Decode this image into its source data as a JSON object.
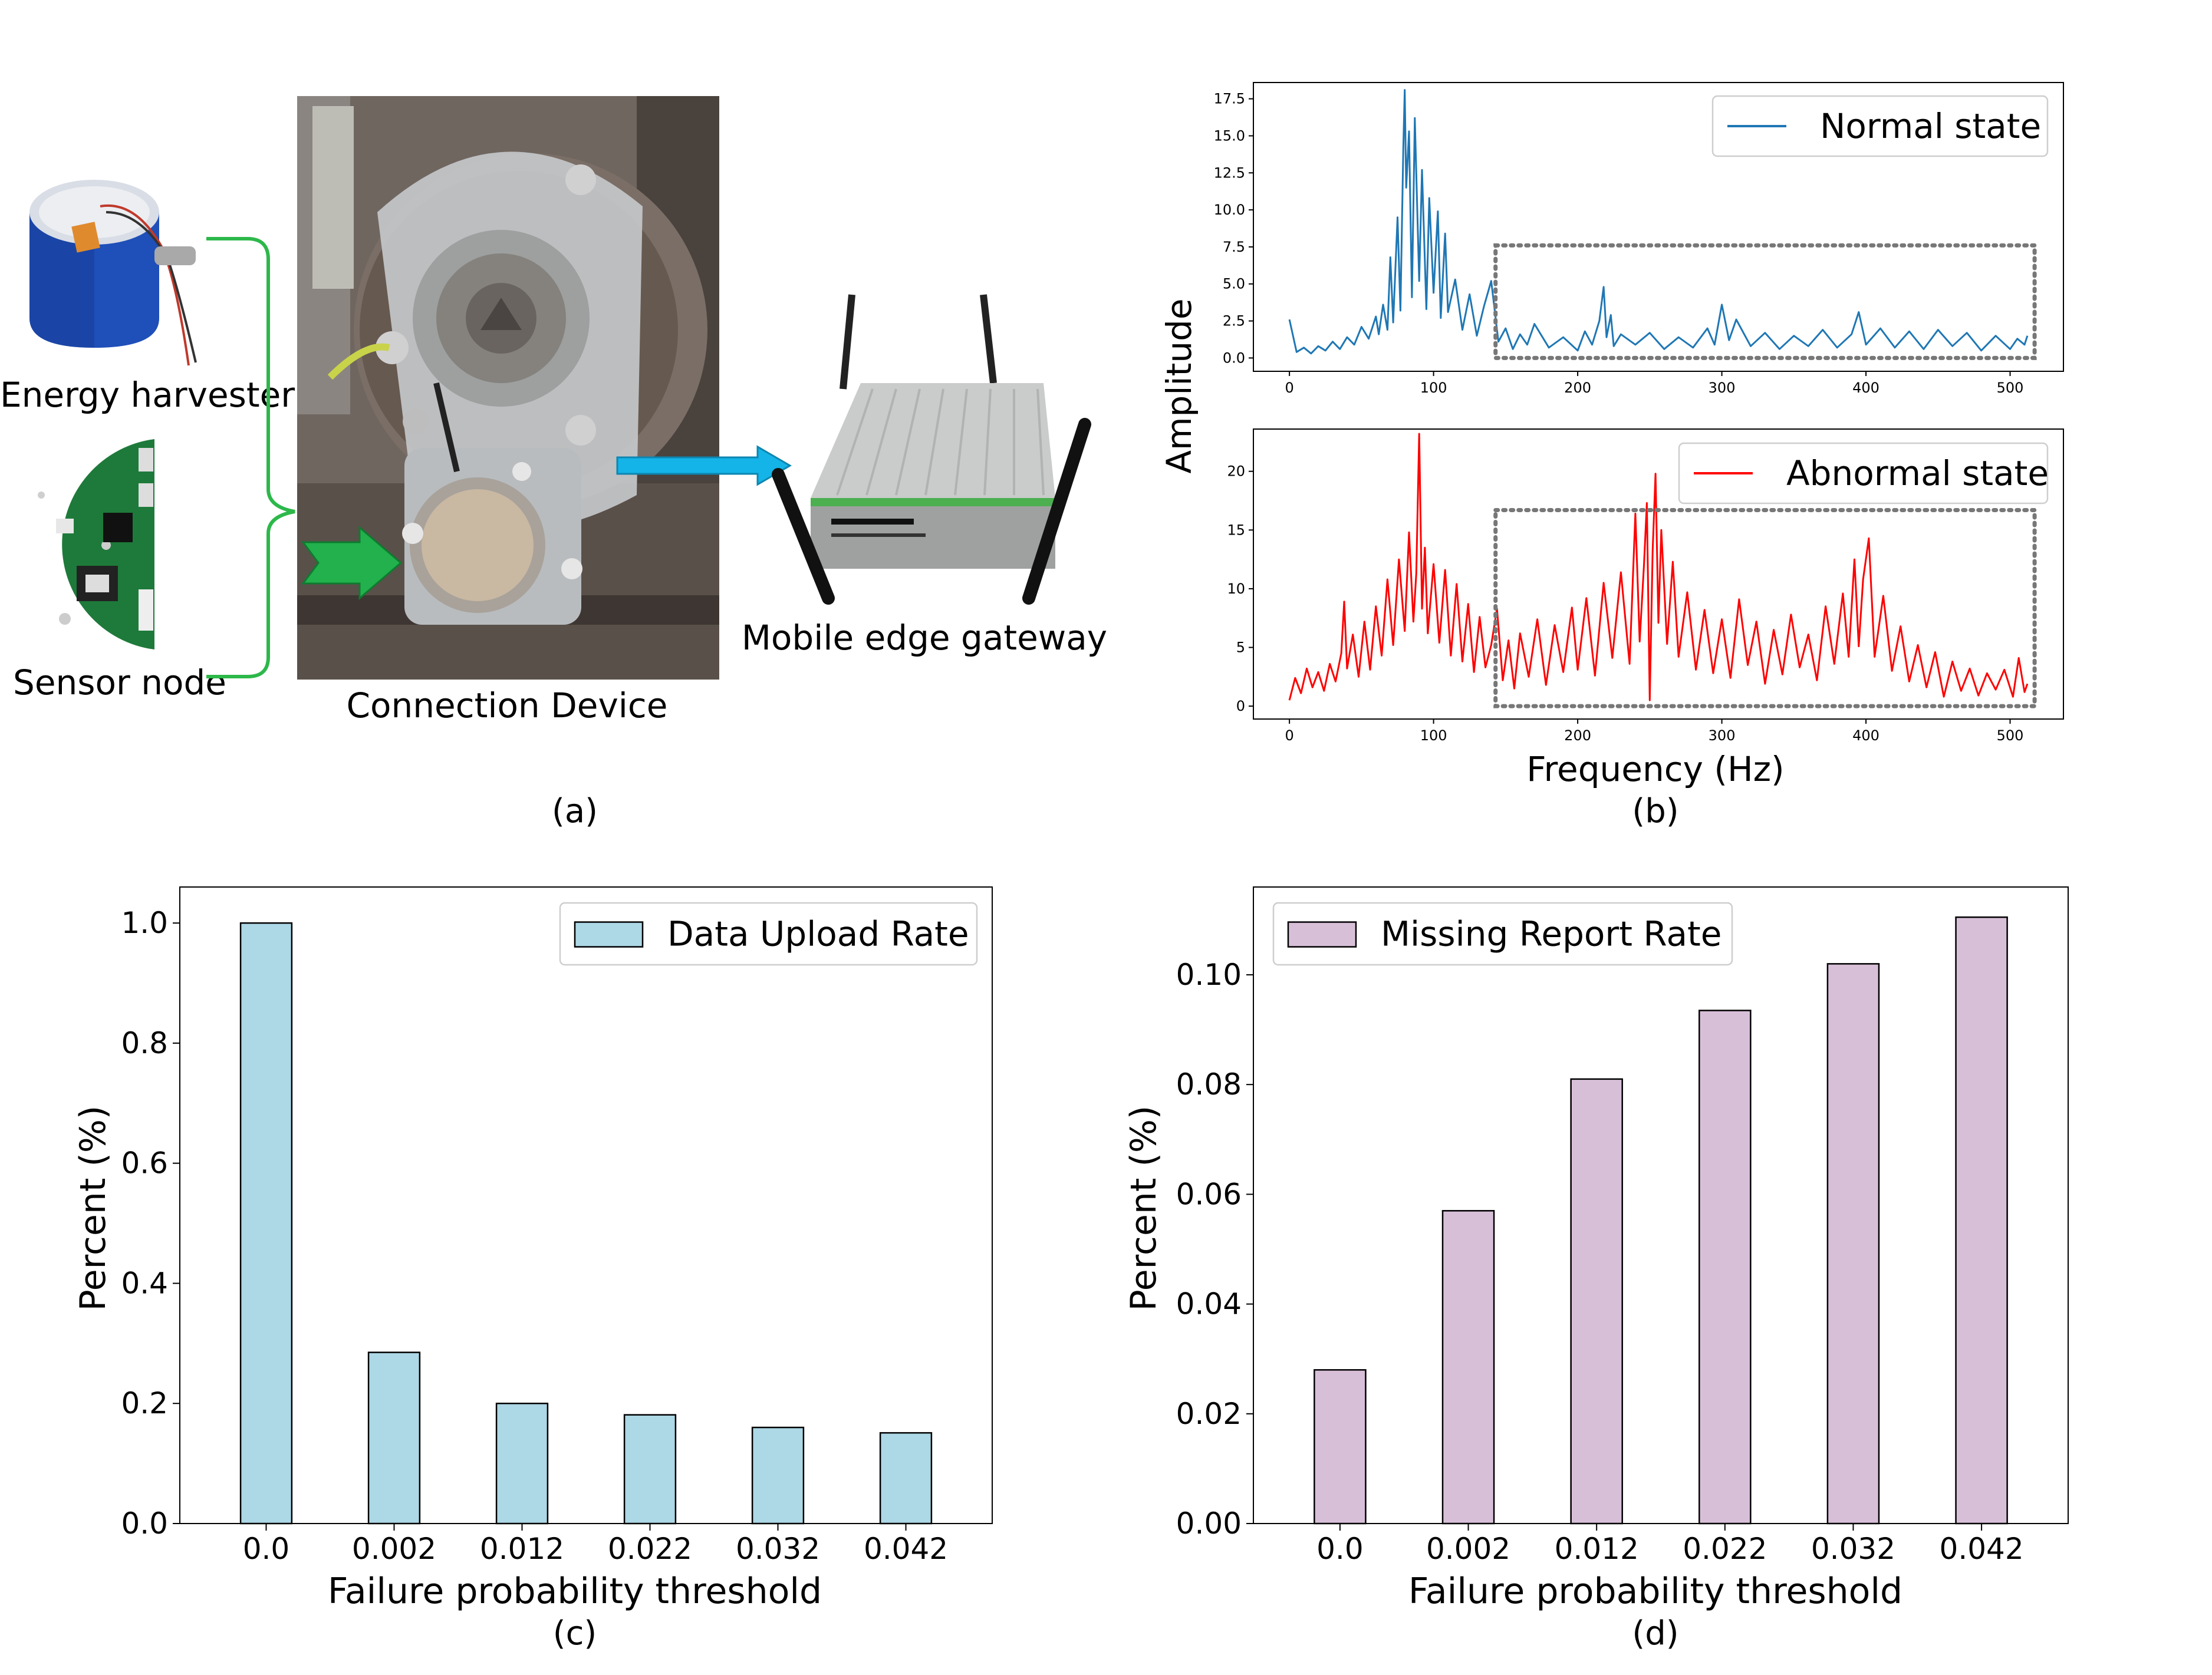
{
  "panel_a": {
    "caption": "(a)",
    "labels": {
      "energy_harvester": "Energy harvester",
      "sensor_node": "Sensor node",
      "connection_device": "Connection Device",
      "mobile_edge_gateway": "Mobile edge gateway"
    },
    "colors": {
      "bracket": "#2db84a",
      "green_arrow": "#22b14c",
      "blue_arrow": "#14b4e8",
      "battery": "#1f4fb8",
      "pcb": "#1e7a3a"
    }
  },
  "chart_data": [
    {
      "id": "b-normal",
      "type": "line",
      "caption": "(b)",
      "legend": "Normal state",
      "legend_position": "top-right",
      "color": "#1f77b4",
      "xlabel": "Frequency (Hz)",
      "ylabel": "Amplitude",
      "xlim": [
        -25,
        537
      ],
      "ylim": [
        -0.9,
        18.6
      ],
      "xticks": [
        0,
        100,
        200,
        300,
        400,
        500
      ],
      "yticks": [
        0.0,
        2.5,
        5.0,
        7.5,
        10.0,
        12.5,
        15.0,
        17.5
      ],
      "ytick_labels": [
        "0.0",
        "2.5",
        "5.0",
        "7.5",
        "10.0",
        "12.5",
        "15.0",
        "17.5"
      ],
      "highlight_box": {
        "x": [
          143,
          517
        ],
        "y": [
          0,
          7.6
        ]
      },
      "x": [
        0,
        5,
        10,
        15,
        20,
        25,
        30,
        35,
        40,
        45,
        50,
        55,
        60,
        62,
        65,
        68,
        70,
        72,
        75,
        77,
        79,
        80,
        81,
        83,
        85,
        87,
        90,
        92,
        95,
        97,
        100,
        103,
        105,
        108,
        110,
        115,
        120,
        125,
        130,
        135,
        140,
        145,
        150,
        155,
        160,
        165,
        170,
        180,
        190,
        200,
        205,
        210,
        215,
        218,
        220,
        223,
        225,
        230,
        240,
        250,
        260,
        270,
        280,
        290,
        295,
        300,
        305,
        310,
        320,
        330,
        340,
        350,
        360,
        370,
        380,
        390,
        395,
        400,
        410,
        420,
        430,
        440,
        450,
        460,
        470,
        480,
        490,
        500,
        505,
        510,
        512
      ],
      "y": [
        2.6,
        0.4,
        0.7,
        0.3,
        0.8,
        0.5,
        1.1,
        0.6,
        1.4,
        0.9,
        2.1,
        1.3,
        2.8,
        1.6,
        3.6,
        1.9,
        6.8,
        2.4,
        9.5,
        3.2,
        14.2,
        18.1,
        11.5,
        15.3,
        4.1,
        16.2,
        5.2,
        12.7,
        3.3,
        10.8,
        4.4,
        9.9,
        2.7,
        8.4,
        3.1,
        5.3,
        1.9,
        4.3,
        1.5,
        3.5,
        5.2,
        1.1,
        2.0,
        0.6,
        1.6,
        0.9,
        2.3,
        0.7,
        1.4,
        0.5,
        1.8,
        0.9,
        2.5,
        4.8,
        1.4,
        2.9,
        0.8,
        1.6,
        0.9,
        1.7,
        0.6,
        1.4,
        0.7,
        2.0,
        0.9,
        3.6,
        1.2,
        2.6,
        0.8,
        1.7,
        0.6,
        1.5,
        0.8,
        1.9,
        0.7,
        1.6,
        3.1,
        0.9,
        2.0,
        0.7,
        1.8,
        0.6,
        1.9,
        0.8,
        1.7,
        0.5,
        1.5,
        0.6,
        1.3,
        0.9,
        1.5
      ]
    },
    {
      "id": "b-abnormal",
      "type": "line",
      "legend": "Abnormal state",
      "legend_position": "top-right",
      "color": "#ff0000",
      "xlabel": "Frequency (Hz)",
      "ylabel": "Amplitude",
      "xlim": [
        -25,
        537
      ],
      "ylim": [
        -1.1,
        23.6
      ],
      "xticks": [
        0,
        100,
        200,
        300,
        400,
        500
      ],
      "yticks": [
        0,
        5,
        10,
        15,
        20
      ],
      "ytick_labels": [
        "0",
        "5",
        "10",
        "15",
        "20"
      ],
      "highlight_box": {
        "x": [
          143,
          517
        ],
        "y": [
          0,
          16.7
        ]
      },
      "x": [
        0,
        4,
        8,
        12,
        16,
        20,
        24,
        28,
        32,
        36,
        38,
        40,
        44,
        48,
        52,
        56,
        60,
        64,
        68,
        72,
        76,
        80,
        83,
        86,
        88,
        90,
        92,
        94,
        96,
        100,
        104,
        108,
        112,
        116,
        120,
        124,
        128,
        132,
        136,
        140,
        144,
        148,
        152,
        156,
        160,
        166,
        172,
        178,
        184,
        190,
        196,
        200,
        206,
        212,
        218,
        224,
        230,
        236,
        240,
        243,
        246,
        248,
        250,
        252,
        254,
        256,
        258,
        262,
        266,
        270,
        276,
        282,
        288,
        294,
        300,
        306,
        312,
        318,
        324,
        330,
        336,
        342,
        348,
        354,
        360,
        366,
        372,
        378,
        384,
        388,
        392,
        395,
        398,
        402,
        406,
        412,
        418,
        424,
        430,
        436,
        442,
        448,
        454,
        460,
        466,
        472,
        478,
        484,
        490,
        496,
        502,
        506,
        510,
        512
      ],
      "y": [
        0.5,
        2.4,
        1.1,
        3.2,
        1.6,
        2.9,
        1.3,
        3.6,
        2.1,
        4.5,
        8.9,
        3.2,
        6.1,
        2.5,
        7.2,
        3.1,
        8.5,
        4.3,
        10.8,
        5.2,
        12.5,
        6.4,
        14.8,
        7.2,
        11.3,
        23.2,
        8.3,
        13.5,
        6.2,
        12.1,
        5.4,
        11.6,
        4.3,
        10.4,
        3.8,
        8.7,
        2.9,
        7.6,
        3.3,
        5.2,
        8.3,
        2.2,
        5.6,
        1.5,
        6.2,
        2.5,
        7.4,
        1.8,
        6.9,
        2.9,
        8.4,
        3.1,
        9.2,
        2.6,
        10.5,
        4.1,
        11.4,
        3.6,
        16.4,
        5.5,
        12.1,
        17.3,
        0.5,
        13.2,
        19.8,
        7.1,
        15.0,
        5.3,
        12.3,
        4.2,
        9.7,
        3.1,
        8.2,
        2.8,
        7.4,
        2.4,
        9.1,
        3.5,
        7.2,
        1.9,
        6.5,
        2.7,
        7.8,
        3.3,
        6.1,
        2.2,
        8.5,
        3.6,
        9.6,
        4.2,
        12.5,
        5.1,
        10.8,
        14.3,
        4.2,
        9.4,
        3.0,
        6.8,
        2.1,
        5.2,
        1.6,
        4.6,
        0.8,
        3.8,
        1.3,
        3.2,
        0.9,
        2.8,
        1.4,
        3.1,
        0.8,
        4.1,
        1.2,
        1.9
      ]
    },
    {
      "id": "c",
      "type": "bar",
      "caption": "(c)",
      "legend": "Data Upload Rate",
      "legend_position": "top-right",
      "color": "#add8e6",
      "categories": [
        "0.0",
        "0.002",
        "0.012",
        "0.022",
        "0.032",
        "0.042"
      ],
      "values": [
        1.0,
        0.285,
        0.2,
        0.181,
        0.16,
        0.151
      ],
      "xlabel": "Failure probability threshold",
      "ylabel": "Percent (%)",
      "ylim": [
        0,
        1.06
      ],
      "yticks": [
        0.0,
        0.2,
        0.4,
        0.6,
        0.8,
        1.0
      ],
      "ytick_labels": [
        "0.0",
        "0.2",
        "0.4",
        "0.6",
        "0.8",
        "1.0"
      ]
    },
    {
      "id": "d",
      "type": "bar",
      "caption": "(d)",
      "legend": "Missing Report Rate",
      "legend_position": "top-right",
      "color": "#d8bfd8",
      "categories": [
        "0.0",
        "0.002",
        "0.012",
        "0.022",
        "0.032",
        "0.042"
      ],
      "values": [
        0.028,
        0.057,
        0.081,
        0.0935,
        0.102,
        0.1105
      ],
      "xlabel": "Failure probability threshold",
      "ylabel": "Percent (%)",
      "ylim": [
        0,
        0.116
      ],
      "yticks": [
        0.0,
        0.02,
        0.04,
        0.06,
        0.08,
        0.1
      ],
      "ytick_labels": [
        "0.00",
        "0.02",
        "0.04",
        "0.06",
        "0.08",
        "0.10"
      ]
    }
  ]
}
